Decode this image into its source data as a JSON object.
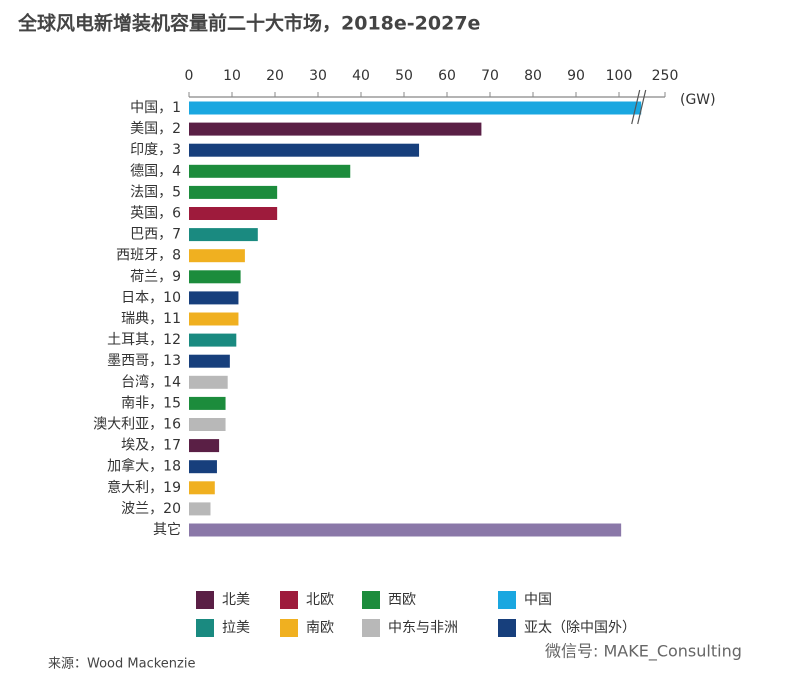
{
  "chart_data": {
    "type": "bar",
    "orientation": "horizontal",
    "title": "全球风电新增装机容量前二十大市场，2018e-2027e",
    "unit": "(GW)",
    "categories": [
      "中国，1",
      "美国，2",
      "印度，3",
      "德国，4",
      "法国，5",
      "英国，6",
      "巴西，7",
      "西班牙，8",
      "荷兰，9",
      "日本，10",
      "瑞典，11",
      "土耳其，12",
      "墨西哥，13",
      "台湾，14",
      "南非，15",
      "澳大利亚，16",
      "埃及，17",
      "加拿大，18",
      "意大利，19",
      "波兰，20",
      "其它"
    ],
    "values": [
      230,
      68,
      53.5,
      37.5,
      20.5,
      20.5,
      16,
      13,
      12,
      11.5,
      11.5,
      11,
      9.5,
      9,
      8.5,
      8.5,
      7,
      6.5,
      6,
      5,
      100.5
    ],
    "colors": [
      "#1aa7e0",
      "#5a1f45",
      "#173f7c",
      "#1c8c3c",
      "#1c8c3c",
      "#9e1b3c",
      "#1a8a80",
      "#f0b020",
      "#1c8c3c",
      "#173f7c",
      "#f0b020",
      "#1a8a80",
      "#173f7c",
      "#b8b8b8",
      "#1c8c3c",
      "#b8b8b8",
      "#5a1f45",
      "#173f7c",
      "#f0b020",
      "#b8b8b8",
      "#8a78a8"
    ],
    "xlim": [
      0,
      250
    ],
    "axis_break": [
      104,
      230
    ],
    "xticks": [
      0,
      10,
      20,
      30,
      40,
      50,
      60,
      70,
      80,
      90,
      100,
      250
    ],
    "legend": [
      {
        "name": "北美",
        "color": "#5a1f45"
      },
      {
        "name": "北欧",
        "color": "#9e1b3c"
      },
      {
        "name": "西欧",
        "color": "#1c8c3c"
      },
      {
        "name": "中国",
        "color": "#1aa7e0"
      },
      {
        "name": "拉美",
        "color": "#1a8a80"
      },
      {
        "name": "南欧",
        "color": "#f0b020"
      },
      {
        "name": "中东与非洲",
        "color": "#b8b8b8"
      },
      {
        "name": "亚太（除中国外）",
        "color": "#173f7c"
      }
    ],
    "source": "来源：Wood Mackenzie",
    "watermark": "微信号: MAKE_Consulting"
  }
}
